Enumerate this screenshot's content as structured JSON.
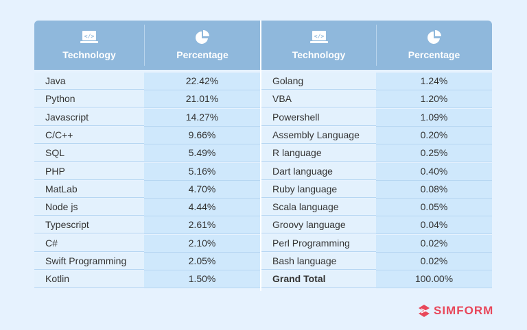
{
  "header": {
    "technology_label": "Technology",
    "percentage_label": "Percentage",
    "technology_icon": "laptop-code-icon",
    "percentage_icon": "pie-chart-icon"
  },
  "left_rows": [
    {
      "tech": "Java",
      "pct": "22.42%"
    },
    {
      "tech": "Python",
      "pct": "21.01%"
    },
    {
      "tech": "Javascript",
      "pct": "14.27%"
    },
    {
      "tech": "C/C++",
      "pct": "9.66%"
    },
    {
      "tech": "SQL",
      "pct": "5.49%"
    },
    {
      "tech": "PHP",
      "pct": "5.16%"
    },
    {
      "tech": "MatLab",
      "pct": "4.70%"
    },
    {
      "tech": "Node js",
      "pct": "4.44%"
    },
    {
      "tech": "Typescript",
      "pct": "2.61%"
    },
    {
      "tech": "C#",
      "pct": "2.10%"
    },
    {
      "tech": "Swift Programming",
      "pct": "2.05%"
    },
    {
      "tech": "Kotlin",
      "pct": "1.50%"
    }
  ],
  "right_rows": [
    {
      "tech": "Golang",
      "pct": "1.24%"
    },
    {
      "tech": "VBA",
      "pct": "1.20%"
    },
    {
      "tech": "Powershell",
      "pct": "1.09%"
    },
    {
      "tech": "Assembly Language",
      "pct": "0.20%"
    },
    {
      "tech": "R language",
      "pct": "0.25%"
    },
    {
      "tech": "Dart language",
      "pct": "0.40%"
    },
    {
      "tech": "Ruby language",
      "pct": "0.08%"
    },
    {
      "tech": "Scala language",
      "pct": "0.05%"
    },
    {
      "tech": "Groovy language",
      "pct": "0.04%"
    },
    {
      "tech": "Perl Programming",
      "pct": "0.02%"
    },
    {
      "tech": "Bash language",
      "pct": "0.02%"
    },
    {
      "tech": "Grand Total",
      "pct": "100.00%"
    }
  ],
  "logo": {
    "text": "SIMFORM",
    "color": "#e8475a"
  },
  "colors": {
    "header": "#8fb8dc",
    "tech_cell": "#e3f1fd",
    "pct_cell": "#cfe8fc",
    "background": "#e6f2fe"
  }
}
